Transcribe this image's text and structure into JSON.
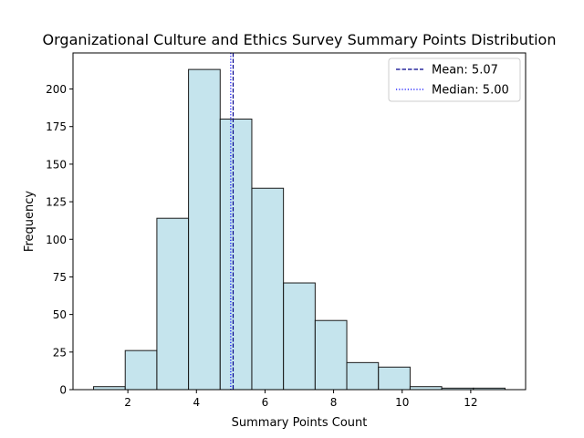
{
  "chart_data": {
    "type": "histogram",
    "title": "Organizational Culture and Ethics Survey Summary Points Distribution",
    "xlabel": "Summary Points Count",
    "ylabel": "Frequency",
    "xlim": [
      0.4,
      13.6
    ],
    "ylim": [
      0,
      224
    ],
    "bin_edges": [
      1.0,
      1.923,
      2.846,
      3.769,
      4.692,
      5.615,
      6.538,
      7.462,
      8.385,
      9.308,
      10.231,
      11.154,
      12.077,
      13.0
    ],
    "frequencies": [
      2,
      26,
      114,
      213,
      180,
      134,
      71,
      46,
      18,
      15,
      2,
      1,
      1
    ],
    "x_ticks": [
      2,
      4,
      6,
      8,
      10,
      12
    ],
    "x_tick_labels": [
      "2",
      "4",
      "6",
      "8",
      "10",
      "12"
    ],
    "y_ticks": [
      0,
      25,
      50,
      75,
      100,
      125,
      150,
      175,
      200
    ],
    "y_tick_labels": [
      "0",
      "25",
      "50",
      "75",
      "100",
      "125",
      "150",
      "175",
      "200"
    ],
    "mean": 5.07,
    "median": 5.0,
    "bar_color": "#add8e6",
    "edge_color": "#1a1a1a",
    "mean_color": "#00008b",
    "median_color": "#0000ff",
    "legend": {
      "position": "top-right",
      "entries": [
        {
          "label": "Mean: 5.07",
          "style": "dashed"
        },
        {
          "label": "Median: 5.00",
          "style": "dotted"
        }
      ]
    }
  }
}
